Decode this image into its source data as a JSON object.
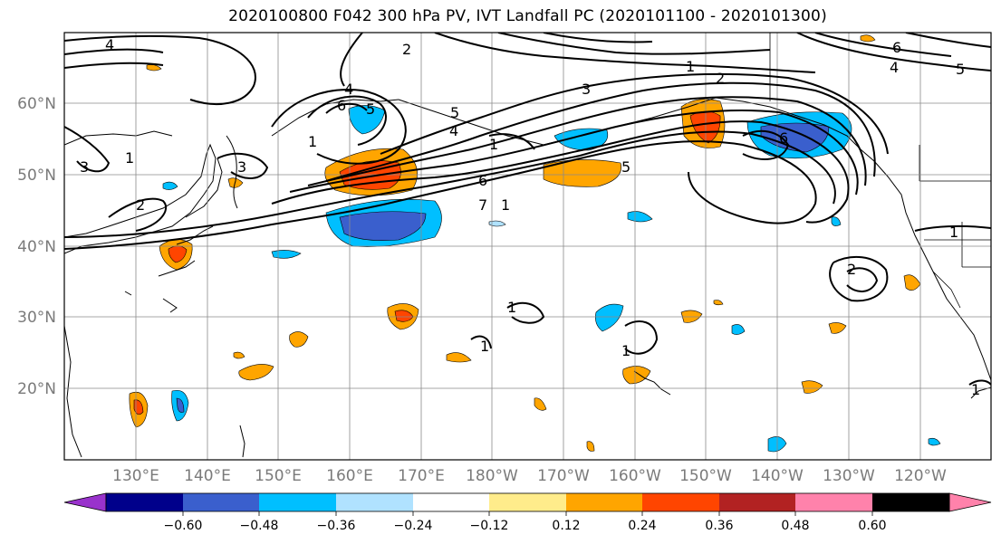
{
  "title": "2020100800 F042 300 hPa PV, IVT Landfall PC (2020101100 - 2020101300)",
  "map": {
    "lat_labels": [
      "60°N",
      "50°N",
      "40°N",
      "30°N",
      "20°N"
    ],
    "lon_labels": [
      "130°E",
      "140°E",
      "150°E",
      "160°E",
      "170°E",
      "180°W",
      "170°W",
      "160°W",
      "150°W",
      "140°W",
      "130°W",
      "120°W"
    ],
    "contour_labels": [
      "1",
      "2",
      "3",
      "4",
      "5",
      "6",
      "6",
      "5",
      "4",
      "6",
      "5",
      "4",
      "3",
      "2",
      "1",
      "1",
      "2",
      "3",
      "4",
      "5",
      "6",
      "7",
      "1",
      "1",
      "1",
      "1",
      "2",
      "1",
      "1",
      "1"
    ]
  },
  "colorbar": {
    "ticks": [
      "−0.60",
      "−0.48",
      "−0.36",
      "−0.24",
      "−0.12",
      "0.12",
      "0.24",
      "0.36",
      "0.48",
      "0.60"
    ],
    "colors": [
      "#9932cc",
      "#00008b",
      "#3a5fcd",
      "#00bfff",
      "#b0e2ff",
      "#ffffff",
      "#ffec8b",
      "#ffa500",
      "#ff4500",
      "#b22222",
      "#ff82ab"
    ]
  }
}
